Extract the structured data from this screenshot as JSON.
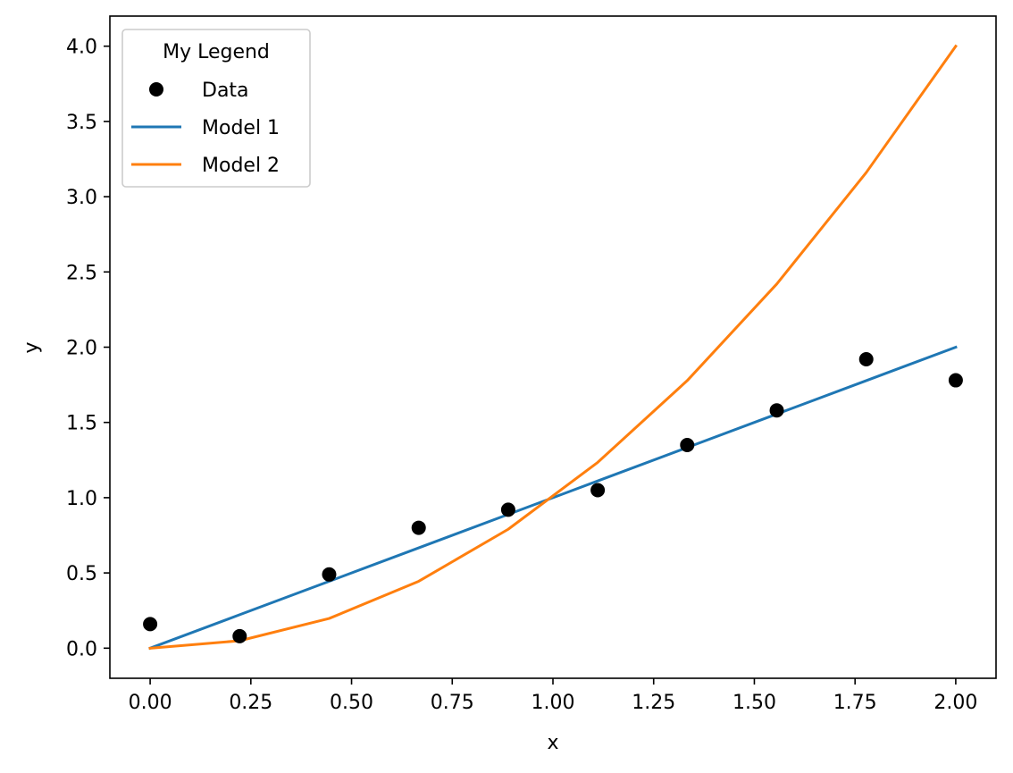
{
  "chart_data": {
    "type": "scatter",
    "xlabel": "x",
    "ylabel": "y",
    "xlim": [
      -0.1,
      2.1
    ],
    "ylim": [
      -0.2,
      4.2
    ],
    "xticks": [
      0.0,
      0.25,
      0.5,
      0.75,
      1.0,
      1.25,
      1.5,
      1.75,
      2.0
    ],
    "xtick_labels": [
      "0.00",
      "0.25",
      "0.50",
      "0.75",
      "1.00",
      "1.25",
      "1.50",
      "1.75",
      "2.00"
    ],
    "yticks": [
      0.0,
      0.5,
      1.0,
      1.5,
      2.0,
      2.5,
      3.0,
      3.5,
      4.0
    ],
    "ytick_labels": [
      "0.0",
      "0.5",
      "1.0",
      "1.5",
      "2.0",
      "2.5",
      "3.0",
      "3.5",
      "4.0"
    ],
    "grid": false,
    "legend": {
      "title": "My Legend",
      "placement": "top-left"
    },
    "x": [
      0.0,
      0.2222,
      0.4444,
      0.6667,
      0.8889,
      1.1111,
      1.3333,
      1.5556,
      1.7778,
      2.0
    ],
    "series": [
      {
        "name": "Data",
        "kind": "scatter",
        "color": "#000000",
        "values": [
          0.16,
          0.08,
          0.49,
          0.8,
          0.92,
          1.05,
          1.35,
          1.58,
          1.92,
          1.78
        ]
      },
      {
        "name": "Model 1",
        "kind": "line",
        "color": "#1f77b4",
        "values": [
          0.0,
          0.2222,
          0.4444,
          0.6667,
          0.8889,
          1.1111,
          1.3333,
          1.5556,
          1.7778,
          2.0
        ]
      },
      {
        "name": "Model 2",
        "kind": "line",
        "color": "#ff7f0e",
        "values": [
          0.0,
          0.0494,
          0.1975,
          0.4444,
          0.7901,
          1.2346,
          1.7778,
          2.4198,
          3.1605,
          4.0
        ]
      }
    ]
  }
}
